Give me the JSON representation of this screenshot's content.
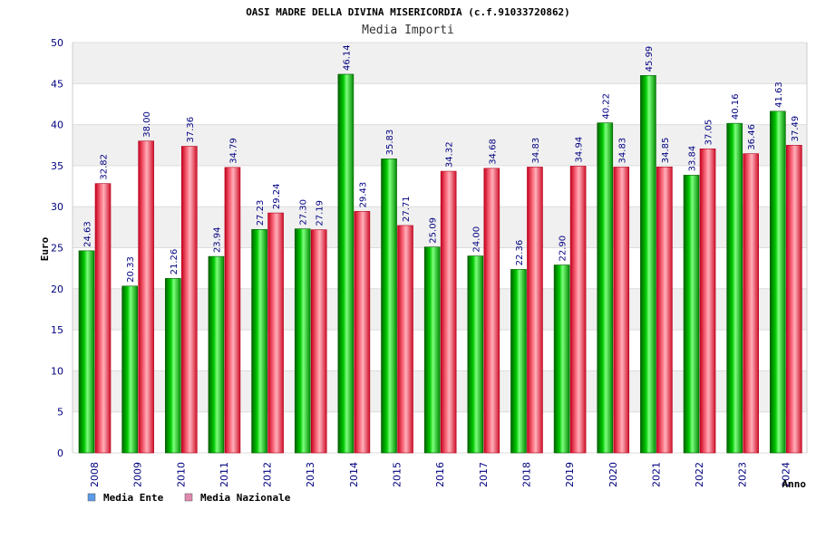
{
  "chart_data": {
    "type": "bar",
    "title": "OASI MADRE DELLA DIVINA MISERICORDIA (c.f.91033720862)",
    "subtitle": "Media Importi",
    "xlabel": "Anno",
    "ylabel": "Euro",
    "ylim": [
      0,
      50
    ],
    "yticks": [
      "0",
      "5",
      "10",
      "15",
      "20",
      "25",
      "30",
      "35",
      "40",
      "45",
      "50"
    ],
    "categories": [
      "2008",
      "2009",
      "2010",
      "2011",
      "2012",
      "2013",
      "2014",
      "2015",
      "2016",
      "2017",
      "2018",
      "2019",
      "2020",
      "2021",
      "2022",
      "2023",
      "2024"
    ],
    "series": [
      {
        "name": "Media Ente",
        "color": "#00b000",
        "legend_color": "#5b9bea",
        "values": [
          24.63,
          20.33,
          21.26,
          23.94,
          27.23,
          27.3,
          46.14,
          35.83,
          25.09,
          24.0,
          22.36,
          22.9,
          40.22,
          45.99,
          33.84,
          40.16,
          41.63
        ],
        "labels": [
          "24.63",
          "20.33",
          "21.26",
          "23.94",
          "27.23",
          "27.30",
          "46.14",
          "35.83",
          "25.09",
          "24.00",
          "22.36",
          "22.90",
          "40.22",
          "45.99",
          "33.84",
          "40.16",
          "41.63"
        ]
      },
      {
        "name": "Media Nazionale",
        "color": "#e0203a",
        "legend_color": "#e08ab0",
        "values": [
          32.82,
          38.0,
          37.36,
          34.79,
          29.24,
          27.19,
          29.43,
          27.71,
          34.32,
          34.68,
          34.83,
          34.94,
          34.83,
          34.85,
          37.05,
          36.46,
          37.49
        ],
        "labels": [
          "32.82",
          "38.00",
          "37.36",
          "34.79",
          "29.24",
          "27.19",
          "29.43",
          "27.71",
          "34.32",
          "34.68",
          "34.83",
          "34.94",
          "34.83",
          "34.85",
          "37.05",
          "36.46",
          "37.49"
        ]
      }
    ],
    "grid": true,
    "legend": "bottom-left"
  }
}
